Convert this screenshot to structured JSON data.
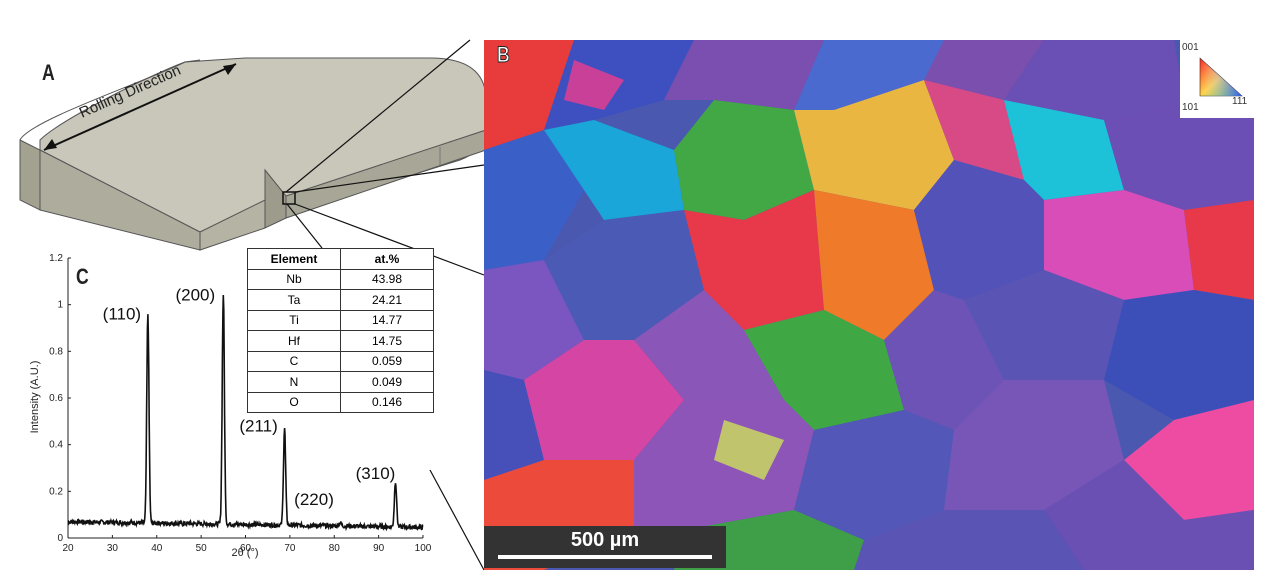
{
  "panels": {
    "a_label": "A",
    "b_label": "B",
    "c_label": "C"
  },
  "block": {
    "annotation": "Rolling Direction"
  },
  "micrograph": {
    "scale_bar_label": "500 µm",
    "ipf_key": {
      "top_label": "001",
      "bottom_left_label": "101",
      "bottom_right_label": "111"
    }
  },
  "composition_table": {
    "headers": [
      "Element",
      "at.%"
    ],
    "rows": [
      [
        "Nb",
        "43.98"
      ],
      [
        "Ta",
        "24.21"
      ],
      [
        "Ti",
        "14.77"
      ],
      [
        "Hf",
        "14.75"
      ],
      [
        "C",
        "0.059"
      ],
      [
        "N",
        "0.049"
      ],
      [
        "O",
        "0.146"
      ]
    ]
  },
  "chart_data": {
    "type": "line",
    "xlabel": "2θ (°)",
    "ylabel": "Intensity (A.U.)",
    "xlim": [
      20,
      100
    ],
    "ylim": [
      0,
      1.2
    ],
    "x_ticks": [
      20,
      30,
      40,
      50,
      60,
      70,
      80,
      90,
      100
    ],
    "y_ticks": [
      0,
      0.2,
      0.4,
      0.6,
      0.8,
      1,
      1.2
    ],
    "baseline": 0.07,
    "peaks": [
      {
        "label": "(110)",
        "x": 38.0,
        "y": 0.91
      },
      {
        "label": "(200)",
        "x": 55.0,
        "y": 1.0
      },
      {
        "label": "(211)",
        "x": 68.8,
        "y": 0.43
      },
      {
        "label": "(220)",
        "x": 81.3,
        "y": 0.03
      },
      {
        "label": "(310)",
        "x": 93.8,
        "y": 0.21
      }
    ]
  }
}
